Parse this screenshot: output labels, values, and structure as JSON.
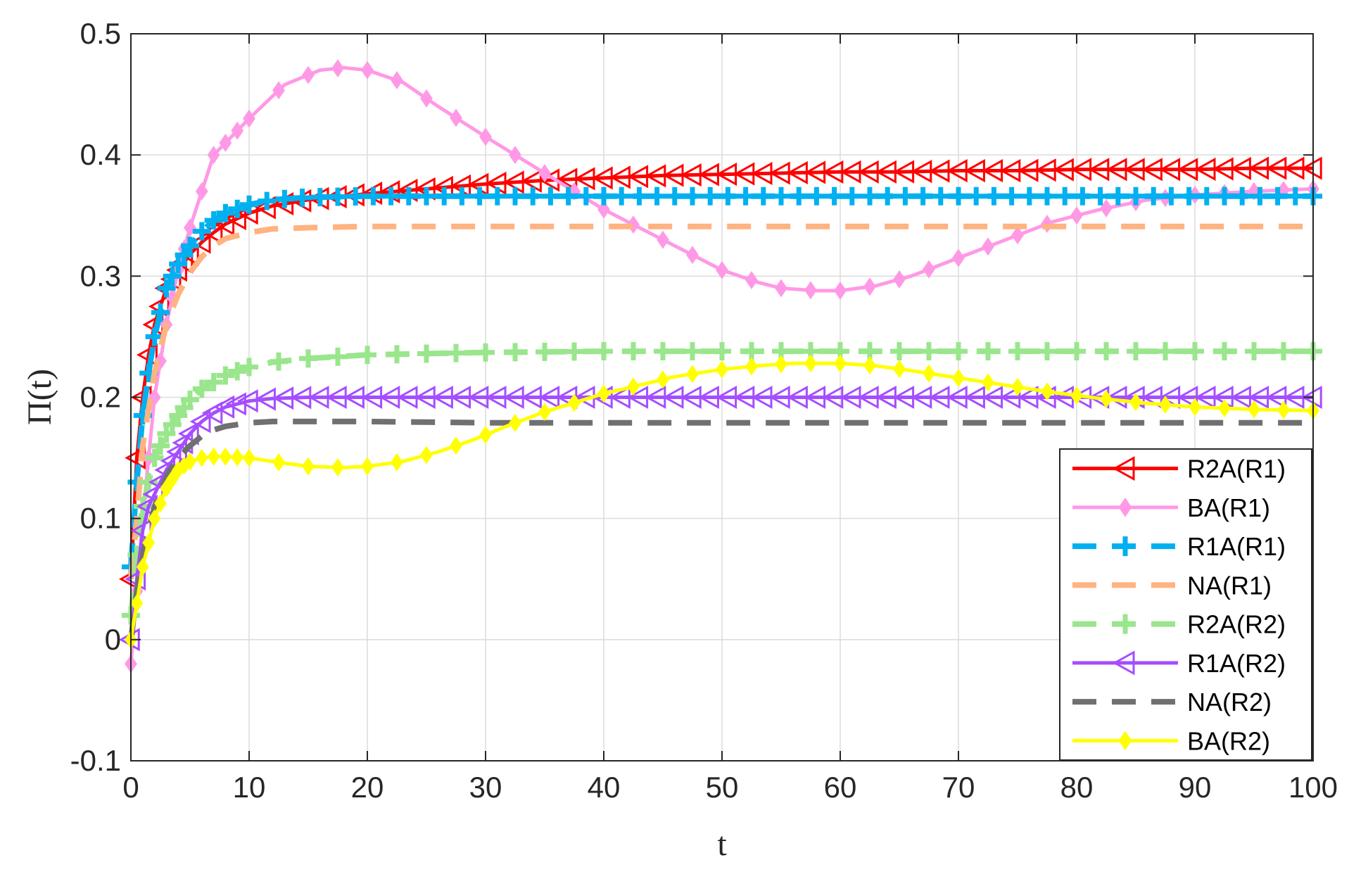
{
  "chart_data": {
    "type": "line",
    "xlabel": "t",
    "ylabel": "Π(t)",
    "xlim": [
      0,
      100
    ],
    "ylim": [
      -0.1,
      0.5
    ],
    "xticks": [
      "0",
      "10",
      "20",
      "30",
      "40",
      "50",
      "60",
      "70",
      "80",
      "90",
      "100"
    ],
    "yticks": [
      "-0.1",
      "0",
      "0.1",
      "0.2",
      "0.3",
      "0.4",
      "0.5"
    ],
    "grid": true,
    "legend_position": "bottom-right",
    "series": [
      {
        "name": "R2A(R1)",
        "color": "#ff0000",
        "dash": "solid",
        "marker": "triangle-left",
        "x": [
          0,
          0.5,
          1,
          1.5,
          2,
          2.5,
          3,
          4,
          5,
          6,
          7,
          8,
          10,
          12,
          15,
          20,
          25,
          30,
          35,
          40,
          45,
          50,
          55,
          60,
          65,
          70,
          75,
          80,
          85,
          90,
          95,
          100
        ],
        "y": [
          0.05,
          0.15,
          0.2,
          0.235,
          0.26,
          0.275,
          0.29,
          0.305,
          0.318,
          0.328,
          0.336,
          0.343,
          0.352,
          0.358,
          0.363,
          0.368,
          0.372,
          0.376,
          0.379,
          0.381,
          0.383,
          0.384,
          0.385,
          0.386,
          0.386,
          0.387,
          0.387,
          0.388,
          0.388,
          0.388,
          0.389,
          0.389
        ]
      },
      {
        "name": "BA(R1)",
        "color": "#ff99e6",
        "dash": "solid",
        "marker": "diamond",
        "x": [
          0,
          1,
          2,
          3,
          4,
          5,
          7,
          10,
          13,
          16,
          18,
          20,
          23,
          26,
          30,
          35,
          40,
          45,
          50,
          53,
          55,
          58,
          60,
          63,
          66,
          70,
          74,
          78,
          82,
          86,
          90,
          95,
          100
        ],
        "y": [
          -0.02,
          0.1,
          0.2,
          0.26,
          0.305,
          0.34,
          0.4,
          0.43,
          0.458,
          0.47,
          0.472,
          0.47,
          0.46,
          0.44,
          0.415,
          0.385,
          0.355,
          0.33,
          0.305,
          0.295,
          0.29,
          0.288,
          0.288,
          0.292,
          0.3,
          0.315,
          0.33,
          0.345,
          0.355,
          0.363,
          0.367,
          0.37,
          0.372
        ]
      },
      {
        "name": "R1A(R1)",
        "color": "#00b0f0",
        "dash": "dash",
        "marker": "plus",
        "x": [
          0,
          0.5,
          1,
          1.5,
          2,
          2.5,
          3,
          4,
          5,
          6,
          7,
          8,
          10,
          12,
          15,
          20,
          30,
          40,
          50,
          60,
          70,
          80,
          90,
          100
        ],
        "y": [
          0.06,
          0.13,
          0.185,
          0.22,
          0.25,
          0.27,
          0.29,
          0.31,
          0.325,
          0.337,
          0.346,
          0.352,
          0.359,
          0.363,
          0.365,
          0.366,
          0.366,
          0.366,
          0.366,
          0.366,
          0.366,
          0.366,
          0.366,
          0.366
        ]
      },
      {
        "name": "NA(R1)",
        "color": "#ffb380",
        "dash": "dash",
        "marker": "none",
        "x": [
          0,
          0.5,
          1,
          2,
          3,
          4,
          5,
          6,
          7,
          8,
          10,
          12,
          15,
          20,
          30,
          50,
          70,
          100
        ],
        "y": [
          0.05,
          0.1,
          0.16,
          0.22,
          0.26,
          0.285,
          0.303,
          0.316,
          0.325,
          0.331,
          0.336,
          0.339,
          0.34,
          0.341,
          0.341,
          0.341,
          0.341,
          0.341
        ]
      },
      {
        "name": "R2A(R2)",
        "color": "#99e68c",
        "dash": "dash",
        "marker": "plus",
        "x": [
          0,
          0.5,
          1,
          2,
          3,
          4,
          5,
          6,
          8,
          10,
          12,
          15,
          20,
          30,
          40,
          50,
          60,
          70,
          80,
          90,
          100
        ],
        "y": [
          0.02,
          0.07,
          0.11,
          0.15,
          0.17,
          0.185,
          0.198,
          0.207,
          0.218,
          0.225,
          0.229,
          0.232,
          0.235,
          0.237,
          0.238,
          0.238,
          0.238,
          0.238,
          0.238,
          0.238,
          0.238
        ]
      },
      {
        "name": "R1A(R2)",
        "color": "#a64dff",
        "dash": "solid",
        "marker": "triangle-left",
        "x": [
          0,
          0.5,
          1,
          1.5,
          2,
          3,
          4,
          5,
          6,
          7,
          8,
          10,
          12,
          15,
          20,
          30,
          40,
          50,
          60,
          70,
          80,
          90,
          100
        ],
        "y": [
          0,
          0.05,
          0.09,
          0.11,
          0.12,
          0.14,
          0.155,
          0.17,
          0.18,
          0.187,
          0.192,
          0.197,
          0.199,
          0.2,
          0.2,
          0.2,
          0.2,
          0.2,
          0.2,
          0.2,
          0.2,
          0.2,
          0.2
        ]
      },
      {
        "name": "NA(R2)",
        "color": "#707070",
        "dash": "dash",
        "marker": "none",
        "x": [
          0,
          0.5,
          1,
          2,
          3,
          4,
          5,
          6,
          7,
          8,
          10,
          12,
          15,
          20,
          30,
          50,
          70,
          100
        ],
        "y": [
          0,
          0.04,
          0.07,
          0.11,
          0.135,
          0.15,
          0.16,
          0.168,
          0.173,
          0.176,
          0.179,
          0.18,
          0.18,
          0.18,
          0.179,
          0.179,
          0.179,
          0.179
        ]
      },
      {
        "name": "BA(R2)",
        "color": "#ffff00",
        "dash": "solid",
        "marker": "diamond",
        "x": [
          0,
          0.5,
          1,
          1.5,
          2,
          3,
          4,
          5,
          6,
          7,
          8,
          10,
          12,
          15,
          18,
          20,
          23,
          26,
          29,
          32,
          35,
          38,
          40,
          43,
          46,
          50,
          53,
          56,
          60,
          63,
          66,
          70,
          74,
          78,
          82,
          86,
          90,
          95,
          100
        ],
        "y": [
          0,
          0.03,
          0.06,
          0.08,
          0.1,
          0.125,
          0.14,
          0.147,
          0.15,
          0.151,
          0.151,
          0.15,
          0.147,
          0.143,
          0.142,
          0.143,
          0.147,
          0.155,
          0.165,
          0.177,
          0.188,
          0.197,
          0.203,
          0.21,
          0.217,
          0.223,
          0.226,
          0.228,
          0.228,
          0.226,
          0.222,
          0.216,
          0.21,
          0.204,
          0.199,
          0.195,
          0.192,
          0.19,
          0.189
        ]
      }
    ]
  }
}
